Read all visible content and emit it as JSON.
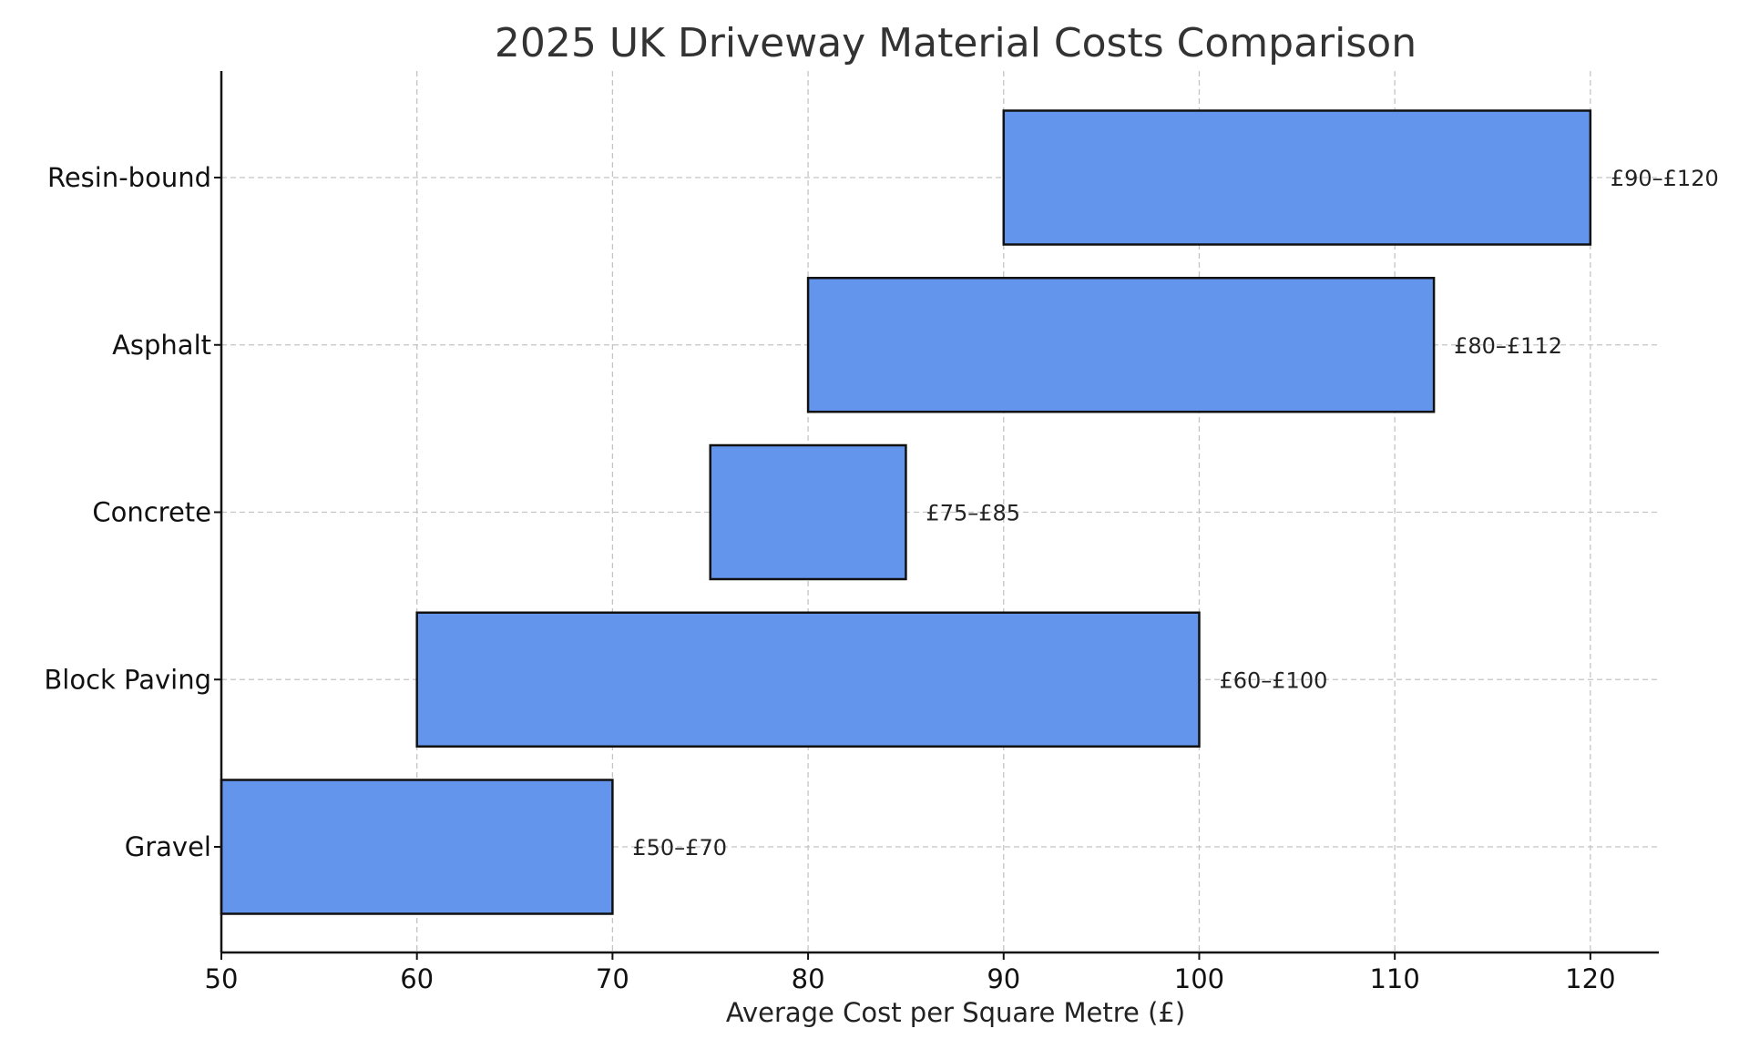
{
  "chart_data": {
    "type": "bar",
    "orientation": "horizontal",
    "variant": "floating-range",
    "title": "2025 UK Driveway Material Costs Comparison",
    "xlabel": "Average Cost per Square Metre (£)",
    "ylabel": "",
    "xlim": [
      50,
      123.5
    ],
    "xticks": [
      50,
      60,
      70,
      80,
      90,
      100,
      110,
      120
    ],
    "grid": true,
    "bar_color": "#6495ED",
    "edge_color": "#111111",
    "categories": [
      "Gravel",
      "Block Paving",
      "Concrete",
      "Asphalt",
      "Resin-bound"
    ],
    "ranges": [
      {
        "category": "Gravel",
        "min": 50,
        "max": 70,
        "label": "£50–£70"
      },
      {
        "category": "Block Paving",
        "min": 60,
        "max": 100,
        "label": "£60–£100"
      },
      {
        "category": "Concrete",
        "min": 75,
        "max": 85,
        "label": "£75–£85"
      },
      {
        "category": "Asphalt",
        "min": 80,
        "max": 112,
        "label": "£80–£112"
      },
      {
        "category": "Resin-bound",
        "min": 90,
        "max": 120,
        "label": "£90–£120"
      }
    ]
  }
}
